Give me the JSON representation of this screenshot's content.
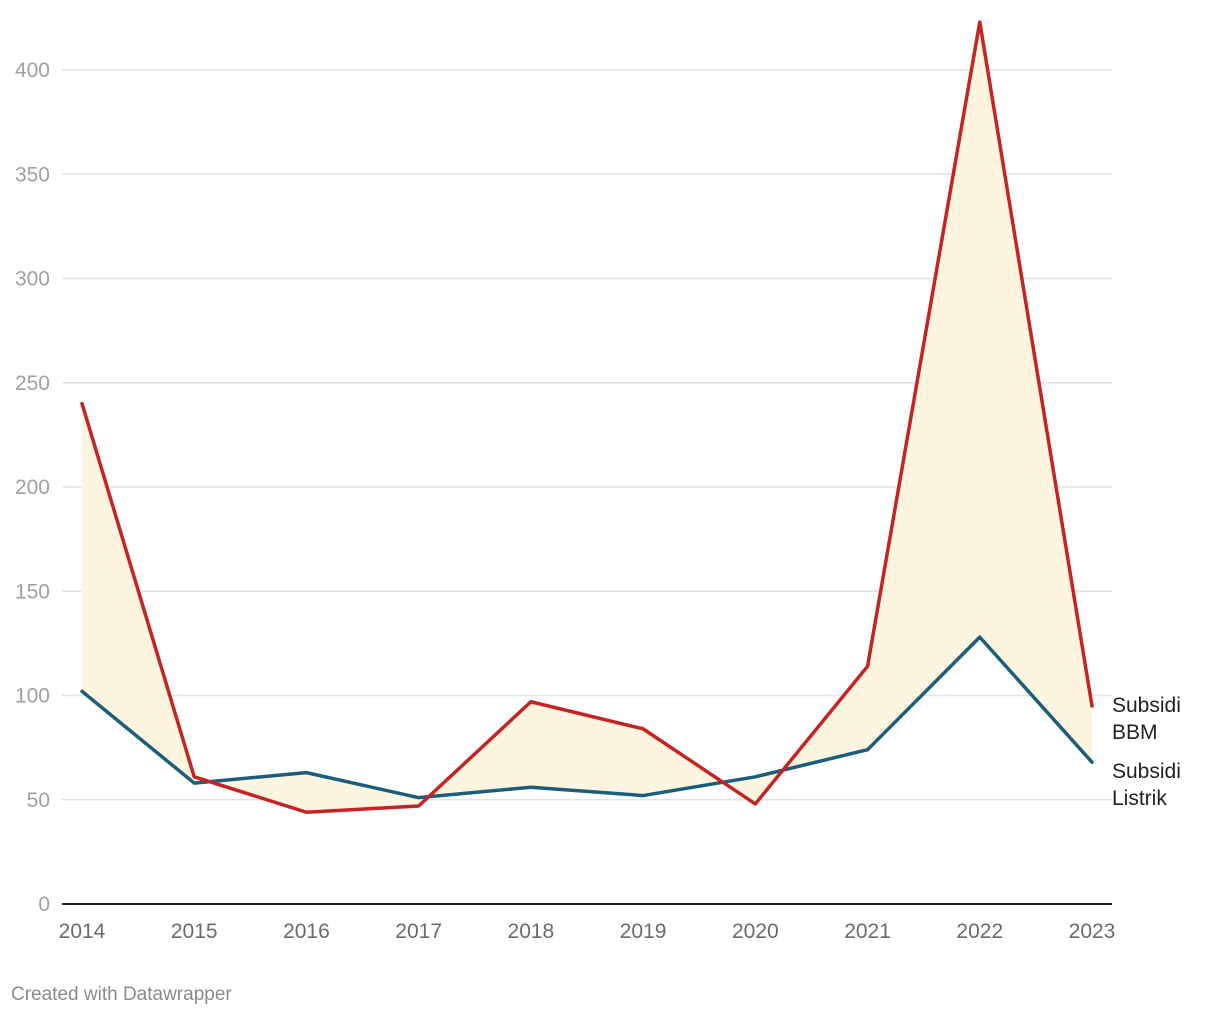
{
  "chart_data": {
    "type": "line",
    "title": "",
    "xlabel": "",
    "ylabel": "",
    "categories": [
      "2014",
      "2015",
      "2016",
      "2017",
      "2018",
      "2019",
      "2020",
      "2021",
      "2022",
      "2023"
    ],
    "y_ticks": [
      0,
      50,
      100,
      150,
      200,
      250,
      300,
      350,
      400
    ],
    "ylim": [
      0,
      400
    ],
    "grid": true,
    "series": [
      {
        "name": "Subsidi BBM",
        "label_lines": [
          "Subsidi",
          "BBM"
        ],
        "color": "#c42424",
        "values": [
          240,
          61,
          44,
          47,
          97,
          84,
          48,
          114,
          423,
          95
        ]
      },
      {
        "name": "Subsidi Listrik",
        "label_lines": [
          "Subsidi",
          "Listrik"
        ],
        "color": "#1c5d7a",
        "values": [
          102,
          58,
          63,
          51,
          56,
          52,
          61,
          74,
          128,
          68
        ]
      }
    ],
    "fill_between_color": "#fdf5e0",
    "gridline_color": "#e2e2e2",
    "axis_color": "#222222"
  },
  "credit": "Created with Datawrapper"
}
